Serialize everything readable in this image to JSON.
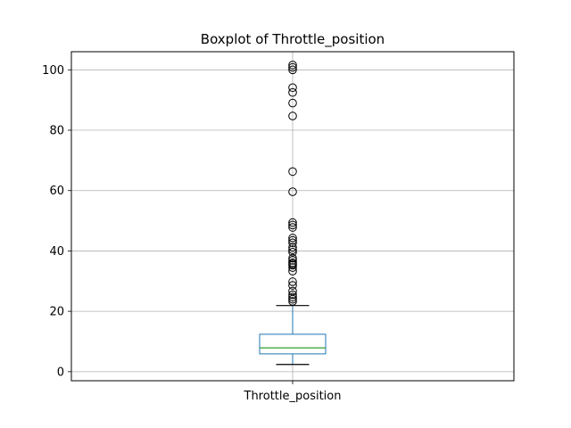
{
  "chart_data": {
    "type": "boxplot",
    "title": "Boxplot of Throttle_position",
    "categories": [
      "Throttle_position"
    ],
    "ylim": [
      -3,
      106
    ],
    "yticks": [
      0,
      20,
      40,
      60,
      80,
      100
    ],
    "grid": true,
    "box": {
      "whisker_low": 2.4,
      "q1": 5.9,
      "median": 7.9,
      "q3": 12.4,
      "whisker_high": 21.9
    },
    "outliers": [
      23.3,
      24.0,
      24.7,
      25.5,
      26.7,
      28.6,
      29.8,
      33.3,
      34.5,
      35.3,
      35.7,
      36.1,
      36.9,
      37.6,
      39.6,
      40.4,
      41.2,
      42.7,
      43.5,
      44.3,
      47.8,
      48.6,
      49.4,
      59.6,
      66.3,
      84.7,
      89.0,
      92.5,
      94.1,
      100.0,
      100.8,
      101.6
    ],
    "colors": {
      "box": "#1f77b4",
      "median": "#2ca02c",
      "whisker": "#1f77b4",
      "cap": "#000000",
      "outlier": "#000000",
      "grid": "#b0b0b0"
    }
  }
}
